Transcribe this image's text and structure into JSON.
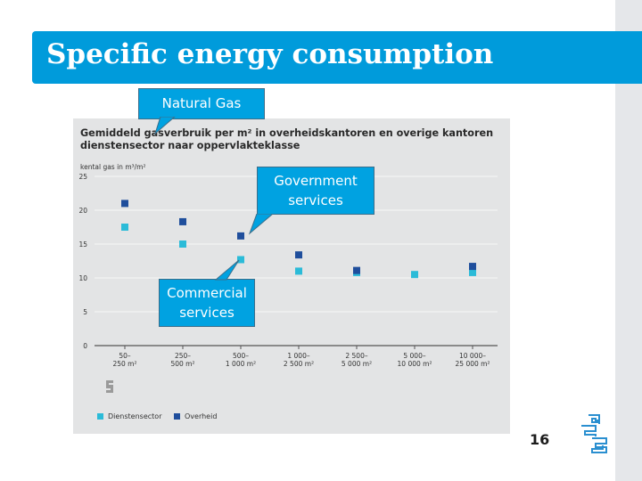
{
  "slide": {
    "title": "Specific energy consumption",
    "page_number": "16"
  },
  "callouts": {
    "natural_gas": "Natural Gas",
    "government": [
      "Government",
      "services"
    ],
    "commercial": [
      "Commercial",
      "services"
    ]
  },
  "colors": {
    "title_bar": "#009bdb",
    "callout_fill": "#00a2e1",
    "dienstensector": "#2bbbd8",
    "overheid": "#1f4e9c"
  },
  "chart_data": {
    "type": "scatter",
    "title_lines": [
      "Gemiddeld gasverbruik per m² in overheidskantoren en overige kantoren",
      "dienstensector naar oppervlakteklasse"
    ],
    "ylabel": "kental gas in m³/m²",
    "ylim": [
      0,
      25
    ],
    "yticks": [
      0,
      5,
      10,
      15,
      20,
      25
    ],
    "grid": true,
    "categories": [
      [
        "50–",
        "250 m²"
      ],
      [
        "250–",
        "500 m²"
      ],
      [
        "500–",
        "1 000 m²"
      ],
      [
        "1 000–",
        "2 500 m²"
      ],
      [
        "2 500–",
        "5 000 m²"
      ],
      [
        "5 000–",
        "10 000 m²"
      ],
      [
        "10 000–",
        "25 000 m²"
      ]
    ],
    "series": [
      {
        "name": "Dienstensector",
        "values": [
          17.5,
          15,
          12.7,
          11,
          10.8,
          10.5,
          10.8
        ]
      },
      {
        "name": "Overheid",
        "values": [
          21,
          18.3,
          16.2,
          13.4,
          11.1,
          null,
          11.7
        ]
      }
    ],
    "legend_position": "bottom-left"
  }
}
